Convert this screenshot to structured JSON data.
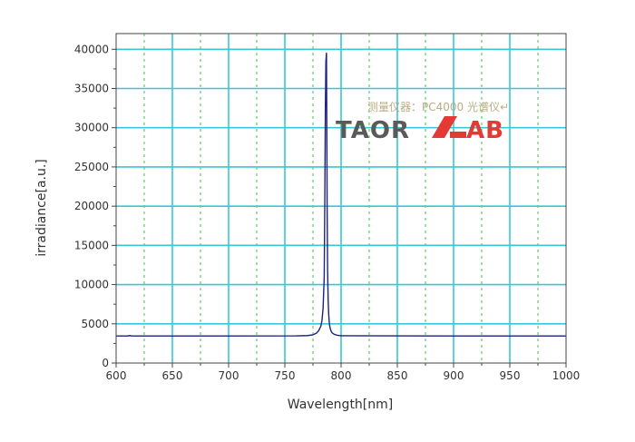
{
  "chart_data": {
    "type": "line",
    "title": "",
    "xlabel": "Wavelength[nm]",
    "ylabel": "irradiance[a.u.]",
    "xlim": [
      600,
      1000
    ],
    "ylim": [
      0,
      42000
    ],
    "x_ticks": [
      600,
      650,
      700,
      750,
      800,
      850,
      900,
      950,
      1000
    ],
    "y_ticks": [
      0,
      5000,
      10000,
      15000,
      20000,
      25000,
      30000,
      35000,
      40000
    ],
    "grid": true,
    "series": [
      {
        "color": "#1a237e",
        "x": [
          600,
          610,
          612,
          614,
          620,
          700,
          760,
          770,
          775,
          778,
          780,
          782,
          783,
          784,
          785,
          785.5,
          786,
          786.5,
          787,
          787.3,
          787.6,
          788,
          788.5,
          789,
          789.5,
          790,
          791,
          792,
          794,
          797,
          800,
          850,
          900,
          950,
          1000
        ],
        "y": [
          3450,
          3450,
          3500,
          3450,
          3450,
          3450,
          3460,
          3500,
          3600,
          3800,
          4100,
          4700,
          5400,
          7000,
          11000,
          20000,
          32000,
          38500,
          39500,
          30000,
          20000,
          12000,
          8000,
          6200,
          5200,
          4600,
          4100,
          3850,
          3650,
          3530,
          3480,
          3460,
          3455,
          3455,
          3450
        ]
      }
    ]
  },
  "annotation": "测量仪器：PC4000 光谱仪↵",
  "logo": {
    "text_left": "TAOR",
    "text_right": "AB",
    "accent_color": "#e53935"
  },
  "colors": {
    "grid_solid": "#35c8d8",
    "grid_dotted": "#66cc66",
    "axis": "#444444"
  }
}
